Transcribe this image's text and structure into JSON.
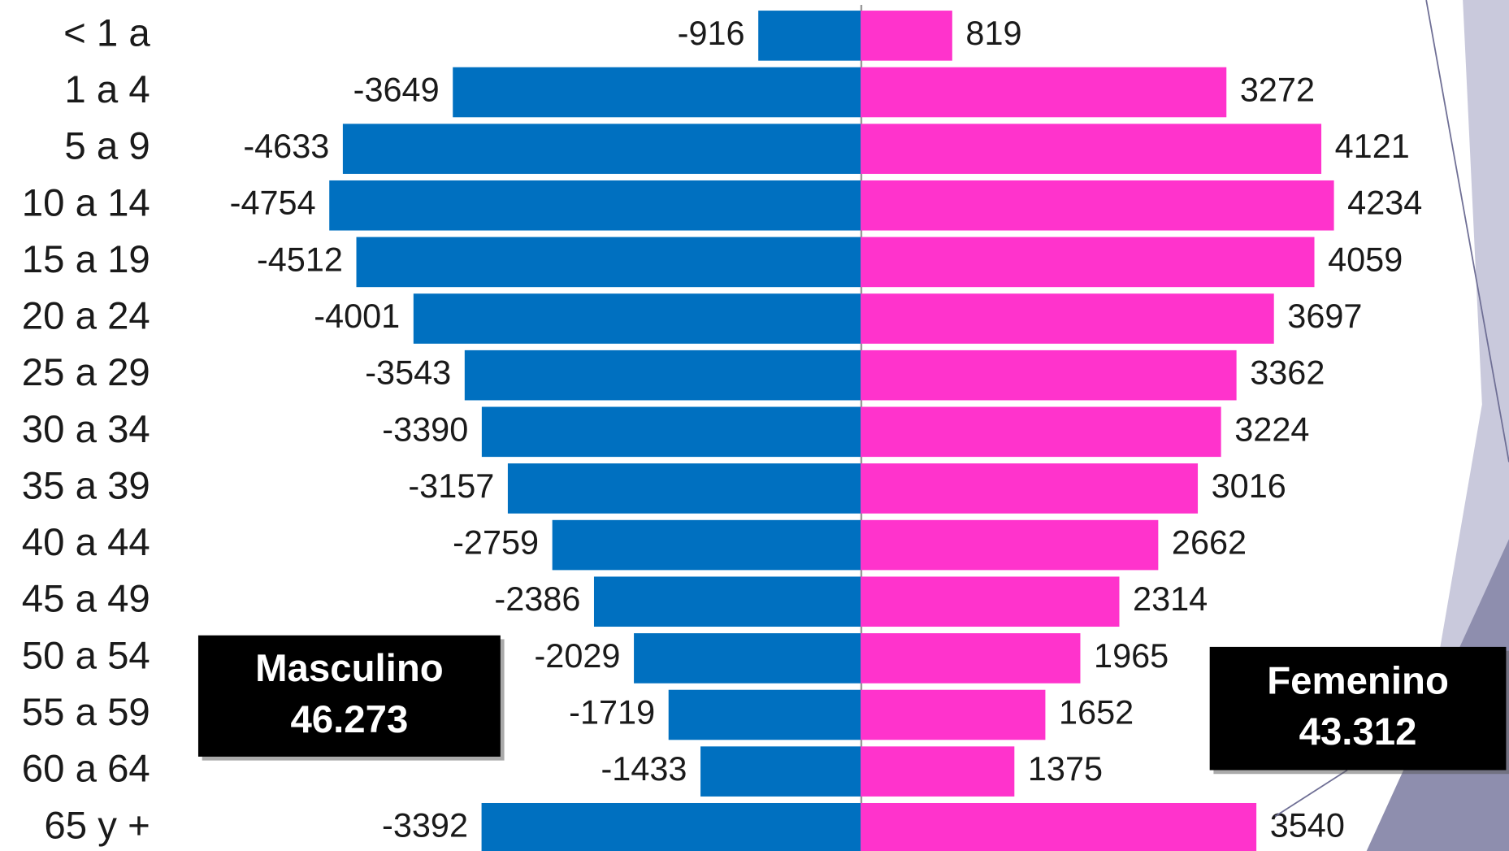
{
  "chart_data": {
    "type": "bar",
    "orientation": "horizontal",
    "stacked": false,
    "categories": [
      "< 1 a",
      "1 a 4",
      "5 a 9",
      "10 a 14",
      "15 a 19",
      "20 a 24",
      "25 a 29",
      "30 a 34",
      "35 a 39",
      "40 a 44",
      "45 a 49",
      "50 a 54",
      "55 a 59",
      "60 a 64",
      "65 y +"
    ],
    "series": [
      {
        "color": "#0070c0",
        "values": [
          -916,
          -3649,
          -4633,
          -4754,
          -4512,
          -4001,
          -3543,
          -3390,
          -3157,
          -2759,
          -2386,
          -2029,
          -1719,
          -1433,
          -3392
        ]
      },
      {
        "color": "#ff33cc",
        "values": [
          819,
          3272,
          4121,
          4234,
          4059,
          3697,
          3362,
          3224,
          3016,
          2662,
          2314,
          1965,
          1652,
          1375,
          3540
        ]
      }
    ],
    "xlim": [
      -7700,
      5800
    ],
    "annotations": [
      {
        "lines": [
          "Masculino",
          "46.273"
        ]
      },
      {
        "lines": [
          "Femenino",
          "43.312"
        ]
      }
    ]
  }
}
